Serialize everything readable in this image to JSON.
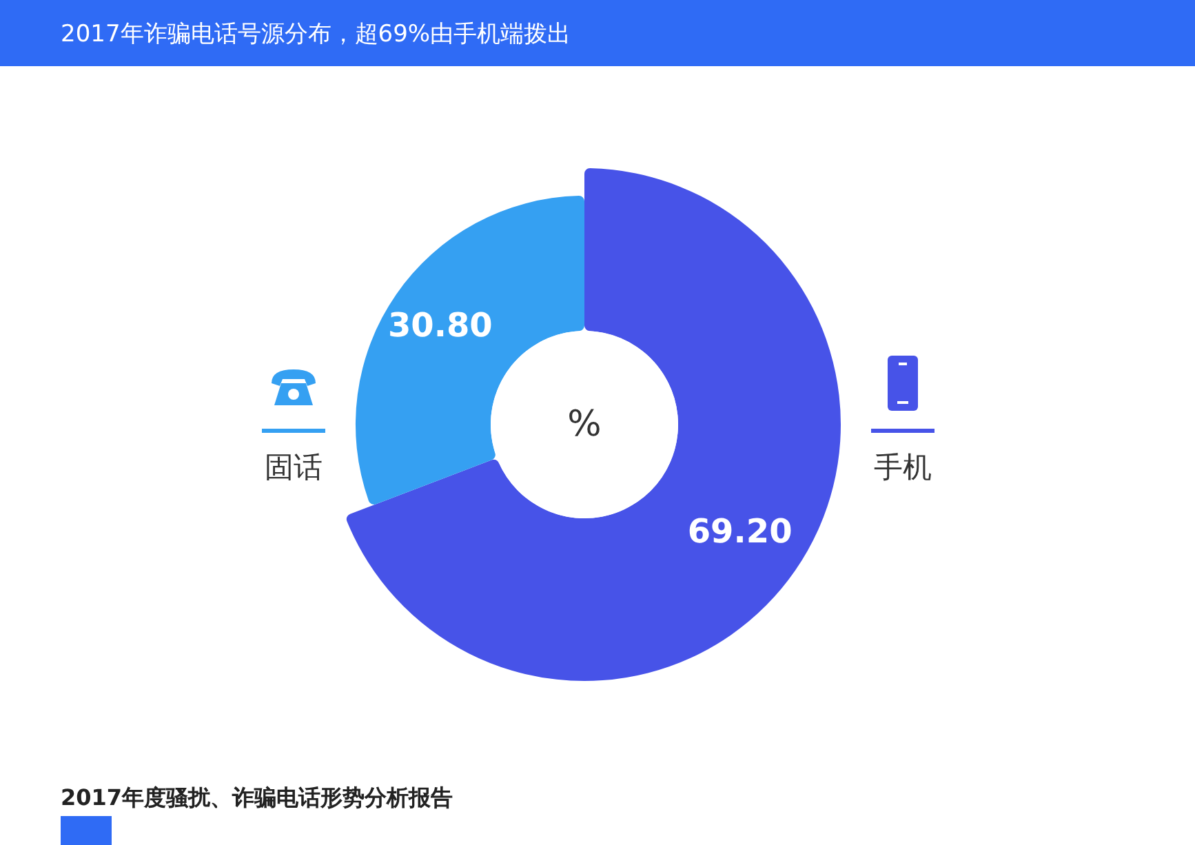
{
  "chart_data": {
    "type": "donut",
    "title": "2017年诈骗电话号源分布，超69%由手机端拨出",
    "categories": [
      "手机",
      "固话"
    ],
    "values": [
      69.2,
      30.8
    ],
    "colors": [
      "#4753e8",
      "#35a0f2"
    ],
    "value_labels": [
      "69.20",
      "30.80"
    ],
    "legend": "left",
    "annotations": [
      "%",
      "2017年度骚扰、诈骗电话形势分析报告"
    ]
  }
}
